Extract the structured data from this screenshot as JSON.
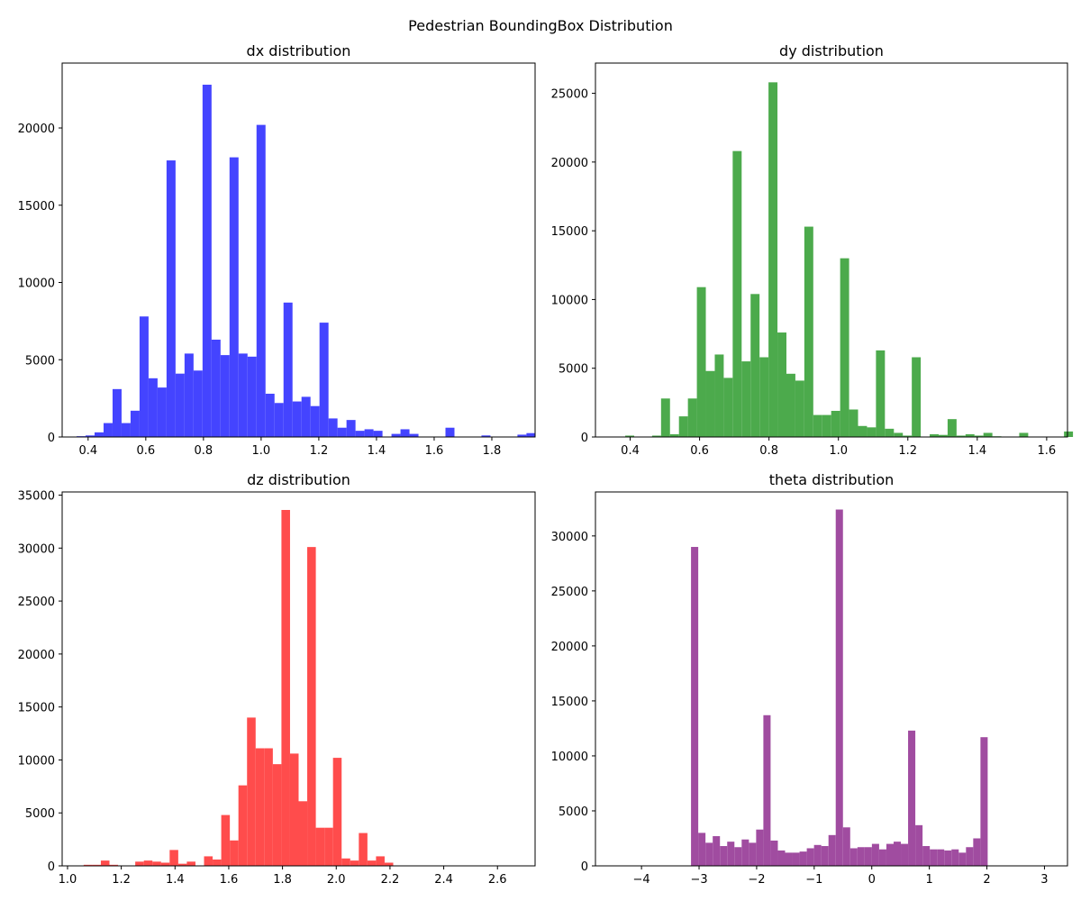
{
  "suptitle": "Pedestrian BoundingBox Distribution",
  "chart_data": [
    {
      "type": "bar",
      "title": "dx distribution",
      "color": "#4444ff",
      "xlim": [
        0.31,
        1.95
      ],
      "ylim": [
        0,
        24200
      ],
      "xticks": [
        0.4,
        0.6,
        0.8,
        1.0,
        1.2,
        1.4,
        1.6,
        1.8
      ],
      "xtick_labels": [
        "0.4",
        "0.6",
        "0.8",
        "1.0",
        "1.2",
        "1.4",
        "1.6",
        "1.8"
      ],
      "yticks": [
        0,
        5000,
        10000,
        15000,
        20000
      ],
      "ytick_labels": [
        "0",
        "5000",
        "10000",
        "15000",
        "20000"
      ],
      "bin_start": 0.36,
      "bin_width": 0.0312,
      "values": [
        50,
        100,
        300,
        900,
        3100,
        900,
        1700,
        7800,
        3800,
        3200,
        17900,
        4100,
        5400,
        4300,
        22800,
        6300,
        5300,
        18100,
        5400,
        5200,
        20200,
        2800,
        2200,
        8700,
        2300,
        2600,
        2000,
        7400,
        1200,
        600,
        1100,
        400,
        500,
        400,
        0,
        200,
        500,
        200,
        0,
        0,
        0,
        600,
        0,
        0,
        0,
        100,
        0,
        0,
        0,
        150,
        250
      ]
    },
    {
      "type": "bar",
      "title": "dy distribution",
      "color": "#4caa4c",
      "xlim": [
        0.3,
        1.66
      ],
      "ylim": [
        0,
        27200
      ],
      "xticks": [
        0.4,
        0.6,
        0.8,
        1.0,
        1.2,
        1.4,
        1.6
      ],
      "xtick_labels": [
        "0.4",
        "0.6",
        "0.8",
        "1.0",
        "1.2",
        "1.4",
        "1.6"
      ],
      "yticks": [
        0,
        5000,
        10000,
        15000,
        20000,
        25000
      ],
      "ytick_labels": [
        "0",
        "5000",
        "10000",
        "15000",
        "20000",
        "25000"
      ],
      "bin_start": 0.36,
      "bin_width": 0.0258,
      "values": [
        0,
        100,
        0,
        0,
        100,
        2800,
        200,
        1500,
        2800,
        10900,
        4800,
        6000,
        4300,
        20800,
        5500,
        10400,
        5800,
        25800,
        7600,
        4600,
        4100,
        15300,
        1600,
        1600,
        1900,
        13000,
        2000,
        800,
        700,
        6300,
        600,
        300,
        100,
        5800,
        0,
        200,
        150,
        1300,
        100,
        200,
        100,
        300,
        50,
        0,
        0,
        300,
        0,
        0,
        0,
        0,
        400
      ]
    },
    {
      "type": "bar",
      "title": "dz distribution",
      "color": "#ff4c4c",
      "xlim": [
        0.98,
        2.74
      ],
      "ylim": [
        0,
        35300
      ],
      "xticks": [
        1.0,
        1.2,
        1.4,
        1.6,
        1.8,
        2.0,
        2.2,
        2.4,
        2.6
      ],
      "xtick_labels": [
        "1.0",
        "1.2",
        "1.4",
        "1.6",
        "1.8",
        "2.0",
        "2.2",
        "2.4",
        "2.6"
      ],
      "yticks": [
        0,
        5000,
        10000,
        15000,
        20000,
        25000,
        30000,
        35000
      ],
      "ytick_labels": [
        "0",
        "5000",
        "10000",
        "15000",
        "20000",
        "25000",
        "30000",
        "35000"
      ],
      "bin_start": 1.06,
      "bin_width": 0.032,
      "values": [
        100,
        100,
        500,
        100,
        0,
        0,
        400,
        500,
        400,
        300,
        1500,
        200,
        400,
        0,
        900,
        600,
        4800,
        2400,
        7600,
        14000,
        11100,
        11100,
        9600,
        33600,
        10600,
        6100,
        30100,
        3600,
        3600,
        10200,
        700,
        500,
        3100,
        500,
        900,
        300,
        0,
        0,
        0,
        0,
        0,
        0,
        0,
        0,
        0,
        0,
        0,
        0,
        0,
        0
      ]
    },
    {
      "type": "bar",
      "title": "theta distribution",
      "color": "#a04ca0",
      "xlim": [
        -4.8,
        3.4
      ],
      "ylim": [
        0,
        34000
      ],
      "xticks": [
        -4,
        -3,
        -2,
        -1,
        0,
        1,
        2,
        3
      ],
      "xtick_labels": [
        "−4",
        "−3",
        "−2",
        "−1",
        "0",
        "1",
        "2",
        "3"
      ],
      "yticks": [
        0,
        5000,
        10000,
        15000,
        20000,
        25000,
        30000
      ],
      "ytick_labels": [
        "0",
        "5000",
        "10000",
        "15000",
        "20000",
        "25000",
        "30000"
      ],
      "bin_start": -3.14,
      "bin_width": 0.1257,
      "values": [
        29000,
        3000,
        2100,
        2700,
        1800,
        2200,
        1700,
        2400,
        2100,
        3300,
        13700,
        2300,
        1400,
        1200,
        1200,
        1300,
        1600,
        1900,
        1800,
        2800,
        32400,
        3500,
        1600,
        1700,
        1700,
        2000,
        1500,
        2000,
        2200,
        2000,
        12300,
        3700,
        1800,
        1500,
        1500,
        1400,
        1500,
        1200,
        1700,
        2500,
        11700
      ]
    }
  ]
}
